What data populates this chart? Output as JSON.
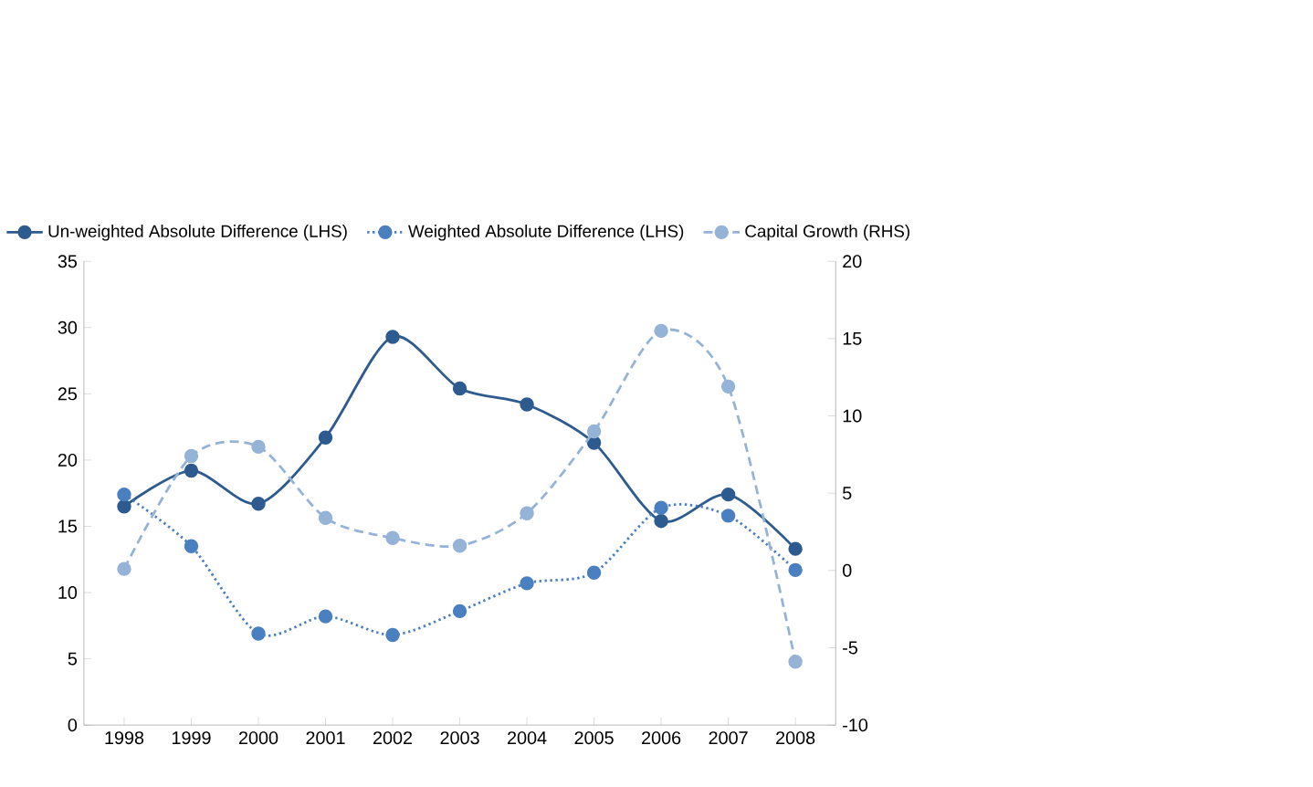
{
  "chart_data": {
    "type": "line",
    "categories": [
      "1998",
      "1999",
      "2000",
      "2001",
      "2002",
      "2003",
      "2004",
      "2005",
      "2006",
      "2007",
      "2008"
    ],
    "series": [
      {
        "name": "Un-weighted Absolute Difference (LHS)",
        "color": "#2e5b8f",
        "line_style": "solid",
        "values": [
          16.5,
          19.2,
          16.7,
          21.7,
          29.3,
          25.4,
          24.2,
          21.3,
          15.4,
          17.4,
          13.3
        ]
      },
      {
        "name": "Weighted Absolute Difference (LHS)",
        "color": "#4a7fc0",
        "line_style": "dotted",
        "values": [
          17.4,
          13.5,
          6.9,
          8.2,
          6.8,
          8.6,
          10.7,
          11.5,
          16.4,
          15.8,
          11.7
        ]
      },
      {
        "name": "Capital Growth (RHS)",
        "color": "#95b3d7",
        "line_style": "dashed",
        "axis": "y2",
        "values": [
          0.1,
          7.4,
          8.0,
          3.4,
          2.1,
          1.6,
          3.7,
          9.0,
          15.5,
          11.9,
          -5.9
        ]
      }
    ],
    "ylim": [
      0,
      35
    ],
    "yticks": [
      0,
      5,
      10,
      15,
      20,
      25,
      30,
      35
    ],
    "y2lim": [
      -10,
      20
    ],
    "y2ticks": [
      -10,
      -5,
      0,
      5,
      10,
      15,
      20
    ],
    "marker": "circle",
    "legend": "top",
    "grid": false
  }
}
